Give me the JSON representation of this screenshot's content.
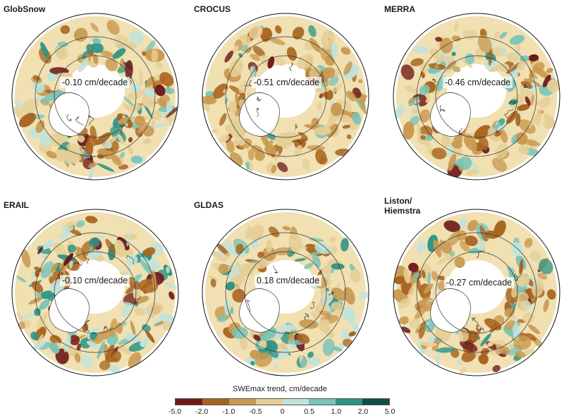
{
  "panels": [
    {
      "title": "GlobSnow",
      "trend": "-0.10 cm/decade",
      "patches": {
        "brown": 0.35,
        "dark": 0.05,
        "teal": 0.35,
        "tan": 0.25
      }
    },
    {
      "title": "CROCUS",
      "trend": "-0.51 cm/decade",
      "patches": {
        "brown": 0.55,
        "dark": 0.04,
        "teal": 0.1,
        "tan": 0.31
      }
    },
    {
      "title": "MERRA",
      "trend": "-0.46 cm/decade",
      "patches": {
        "brown": 0.45,
        "dark": 0.04,
        "teal": 0.25,
        "tan": 0.26
      }
    },
    {
      "title": "ERAIL",
      "trend": "-0.10 cm/decade",
      "patches": {
        "brown": 0.35,
        "dark": 0.05,
        "teal": 0.4,
        "tan": 0.2
      }
    },
    {
      "title": "GLDAS",
      "trend": "0.18 cm/decade",
      "patches": {
        "brown": 0.25,
        "dark": 0.02,
        "teal": 0.45,
        "tan": 0.28
      }
    },
    {
      "title": "Liston/\nHiemstra",
      "trend": "-0.27 cm/decade",
      "patches": {
        "brown": 0.45,
        "dark": 0.05,
        "teal": 0.3,
        "tan": 0.2
      }
    }
  ],
  "colorbar": {
    "title": "SWEmax trend, cm/decade",
    "ticks": [
      "-5.0",
      "-2.0",
      "-1.0",
      "-0.5",
      "0",
      "0.5",
      "1.0",
      "2.0",
      "5.0"
    ],
    "colors": [
      "#6e1a1a",
      "#a8641f",
      "#c99a52",
      "#e6cf96",
      "#f5ebc8",
      "#bfe3dc",
      "#79c4b8",
      "#2e9486",
      "#0d4f45"
    ]
  }
}
